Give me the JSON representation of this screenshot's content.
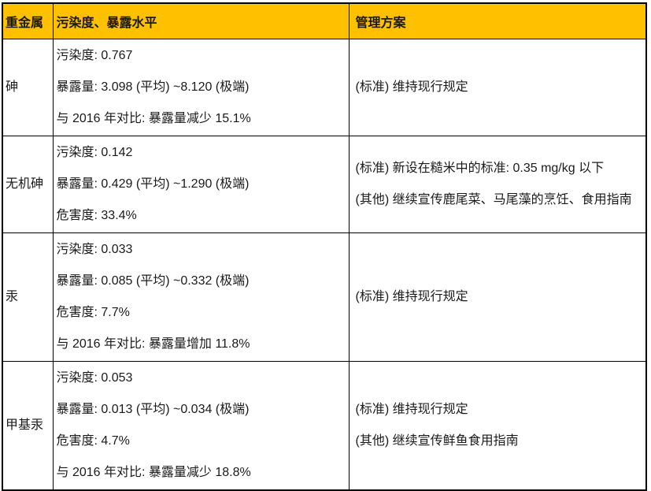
{
  "colors": {
    "header_bg": "#FFC000",
    "border_color": "#000000",
    "text_color": "#1A1A1A"
  },
  "table": {
    "header": {
      "metal": "重金属",
      "levels": "污染度、暴露水平",
      "plans": "管理方案"
    },
    "rows": [
      {
        "metal": "砷",
        "levels": [
          "污染度: 0.767",
          "暴露量: 3.098 (平均) ~8.120 (极端)",
          "与 2016 年对比: 暴露量减少 15.1%"
        ],
        "plans": [
          "(标准) 维持现行规定"
        ]
      },
      {
        "metal": "无机砷",
        "levels": [
          "污染度: 0.142",
          "暴露量: 0.429 (平均) ~1.290 (极端)",
          "危害度: 33.4%"
        ],
        "plans": [
          "(标准) 新设在糙米中的标准: 0.35 mg/kg 以下",
          "(其他) 继续宣传鹿尾菜、马尾藻的烹饪、食用指南"
        ]
      },
      {
        "metal": "汞",
        "levels": [
          "污染度: 0.033",
          "暴露量: 0.085 (平均) ~0.332 (极端)",
          "危害度: 7.7%",
          "与 2016 年对比: 暴露量增加 11.8%"
        ],
        "plans": [
          "(标准) 维持现行规定"
        ]
      },
      {
        "metal": "甲基汞",
        "levels": [
          "污染度: 0.053",
          "暴露量: 0.013 (平均) ~0.034 (极端)",
          "危害度: 4.7%",
          "与 2016 年对比: 暴露量减少 18.8%"
        ],
        "plans": [
          "(标准) 维持现行规定",
          "(其他) 继续宣传鲜鱼食用指南"
        ]
      }
    ]
  }
}
